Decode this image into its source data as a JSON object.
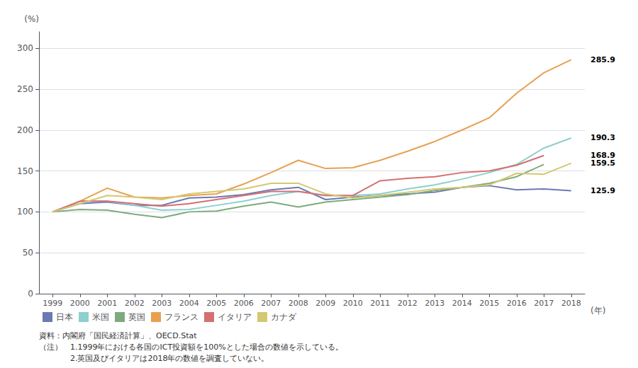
{
  "chart_data": {
    "type": "line",
    "categories": [
      "1999",
      "2000",
      "2001",
      "2002",
      "2003",
      "2004",
      "2005",
      "2006",
      "2007",
      "2008",
      "2009",
      "2010",
      "2011",
      "2012",
      "2013",
      "2014",
      "2015",
      "2016",
      "2017",
      "2018"
    ],
    "series": [
      {
        "name": "日本",
        "color": "#6b7ab5",
        "values": [
          100,
          110,
          112,
          108,
          108,
          117,
          118,
          121,
          127,
          130,
          115,
          118,
          120,
          122,
          124,
          130,
          132,
          127,
          128,
          125.9
        ]
      },
      {
        "name": "米国",
        "color": "#8ecfcf",
        "values": [
          100,
          113,
          113,
          108,
          102,
          103,
          108,
          113,
          120,
          125,
          120,
          120,
          122,
          128,
          133,
          140,
          148,
          158,
          178,
          190.3
        ]
      },
      {
        "name": "英国",
        "color": "#7dab7d",
        "values": [
          100,
          103,
          102,
          97,
          93,
          100,
          101,
          107,
          112,
          106,
          112,
          115,
          118,
          121,
          126,
          130,
          135,
          143,
          158.0,
          null
        ]
      },
      {
        "name": "フランス",
        "color": "#e8a050",
        "values": [
          100,
          113,
          129,
          118,
          117,
          120,
          122,
          134,
          148,
          163,
          153,
          154,
          163,
          174,
          186,
          200,
          215,
          245,
          270,
          285.9
        ]
      },
      {
        "name": "イタリア",
        "color": "#d47070",
        "values": [
          100,
          113,
          113,
          110,
          107,
          110,
          115,
          120,
          125,
          125,
          120,
          120,
          138,
          141,
          143,
          148,
          150,
          157,
          168.9,
          null
        ]
      },
      {
        "name": "カナダ",
        "color": "#d4c870",
        "values": [
          100,
          110,
          120,
          118,
          115,
          122,
          125,
          128,
          135,
          135,
          122,
          117,
          120,
          124,
          128,
          130,
          133,
          147,
          146,
          159.5
        ]
      }
    ],
    "ylim": [
      0,
      320
    ],
    "yticks": [
      0,
      50,
      100,
      150,
      200,
      250,
      300
    ],
    "ylabel": "(%)",
    "xlabel": "(年)",
    "grid": true,
    "legend": "bottom",
    "annotations": [
      {
        "y": 285.9,
        "text": "285.9"
      },
      {
        "y": 190.3,
        "text": "190.3"
      },
      {
        "y": 168.9,
        "text": "168.9"
      },
      {
        "y": 159.5,
        "text": "159.5"
      },
      {
        "y": 125.9,
        "text": "125.9"
      }
    ],
    "notes": [
      "資料：内閣府「国民経済計算」、OECD.Stat",
      "（注）　1.1999年における各国のICT投資額を100%とした場合の数値を示している。",
      "　　　　2.英国及びイタリアは2018年の数値を調査していない。"
    ]
  }
}
